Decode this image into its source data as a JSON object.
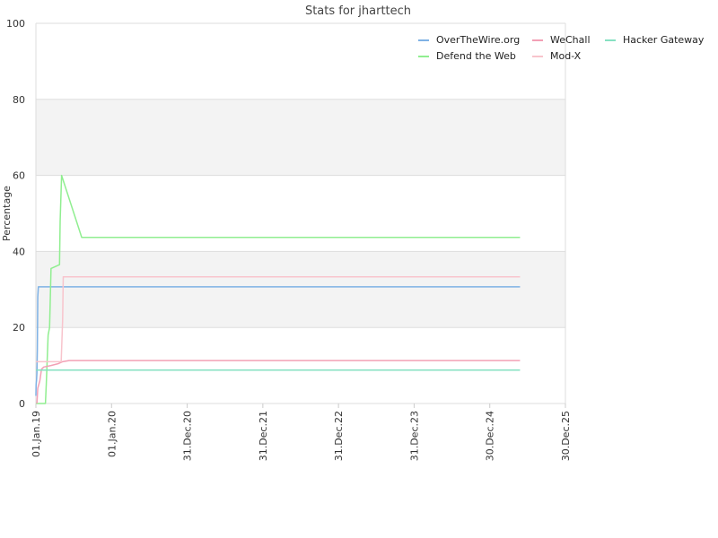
{
  "chart_data": {
    "type": "line",
    "title": "Stats for jharttech",
    "ylabel": "Percentage",
    "xlabel": "",
    "ylim": [
      0,
      100
    ],
    "yticks": [
      0,
      20,
      40,
      60,
      80,
      100
    ],
    "x_range": [
      "2019-01-01",
      "2025-12-30"
    ],
    "xticks": [
      {
        "date": "2019-01-01",
        "label": "01.Jan.19"
      },
      {
        "date": "2020-01-01",
        "label": "01.Jan.20"
      },
      {
        "date": "2020-12-31",
        "label": "31.Dec.20"
      },
      {
        "date": "2021-12-31",
        "label": "31.Dec.21"
      },
      {
        "date": "2022-12-31",
        "label": "31.Dec.22"
      },
      {
        "date": "2023-12-31",
        "label": "31.Dec.23"
      },
      {
        "date": "2024-12-30",
        "label": "30.Dec.24"
      },
      {
        "date": "2025-12-30",
        "label": "30.Dec.25"
      }
    ],
    "grid": true,
    "bands": "alternating light-grey bands between y=20-40 and y=60-80",
    "legend_position": "top-right",
    "series": [
      {
        "name": "OverTheWire.org",
        "color": "#7fb2e5",
        "points": [
          [
            "2019-01-01",
            2
          ],
          [
            "2019-01-02",
            5
          ],
          [
            "2019-01-04",
            6
          ],
          [
            "2019-01-06",
            8
          ],
          [
            "2019-01-08",
            14
          ],
          [
            "2019-01-10",
            28
          ],
          [
            "2019-01-13",
            30.7
          ],
          [
            "2025-05-25",
            30.7
          ]
        ]
      },
      {
        "name": "Defend the Web",
        "color": "#90ee90",
        "points": [
          [
            "2019-01-01",
            0
          ],
          [
            "2019-02-16",
            0
          ],
          [
            "2019-02-20",
            5
          ],
          [
            "2019-03-01",
            18
          ],
          [
            "2019-03-08",
            20
          ],
          [
            "2019-03-15",
            35.5
          ],
          [
            "2019-04-25",
            36.5
          ],
          [
            "2019-04-28",
            48
          ],
          [
            "2019-05-05",
            60
          ],
          [
            "2019-08-10",
            43.7
          ],
          [
            "2025-05-25",
            43.7
          ]
        ]
      },
      {
        "name": "WeChall",
        "color": "#f2a0b5",
        "points": [
          [
            "2019-01-06",
            0
          ],
          [
            "2019-01-10",
            4
          ],
          [
            "2019-01-20",
            6
          ],
          [
            "2019-01-28",
            9
          ],
          [
            "2019-02-08",
            9.6
          ],
          [
            "2019-03-15",
            10
          ],
          [
            "2019-04-20",
            10.5
          ],
          [
            "2019-05-10",
            11
          ],
          [
            "2019-06-10",
            11.3
          ],
          [
            "2025-05-25",
            11.3
          ]
        ]
      },
      {
        "name": "Mod-X",
        "color": "#f8c4cc",
        "points": [
          [
            "2019-01-01",
            11
          ],
          [
            "2019-05-03",
            11
          ],
          [
            "2019-05-10",
            22
          ],
          [
            "2019-05-13",
            33.3
          ],
          [
            "2025-05-25",
            33.3
          ]
        ]
      },
      {
        "name": "Hacker Gateway",
        "color": "#86e0c2",
        "points": [
          [
            "2019-01-01",
            8.8
          ],
          [
            "2025-05-25",
            8.8
          ]
        ]
      }
    ]
  }
}
